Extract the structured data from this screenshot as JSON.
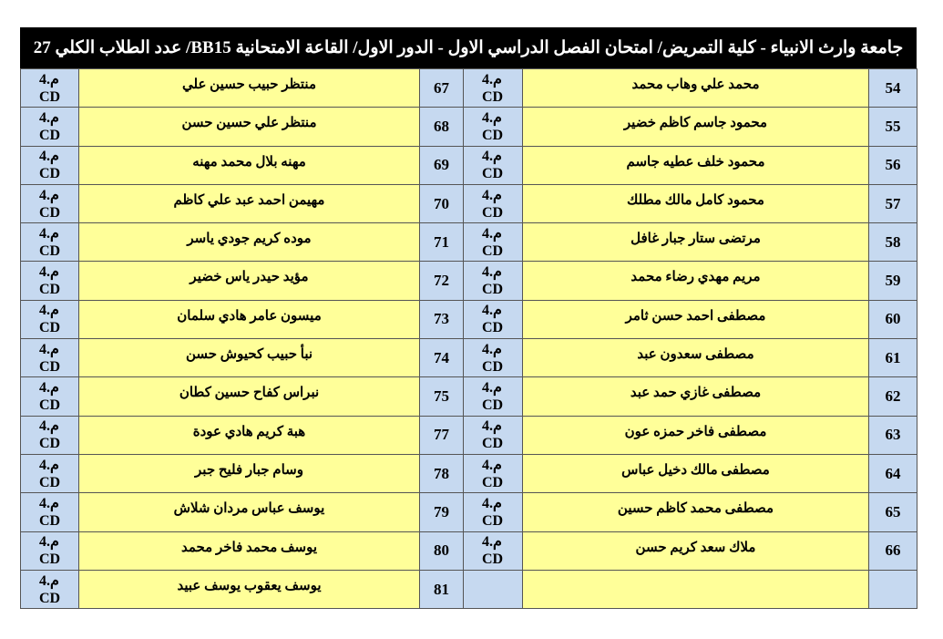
{
  "header": {
    "title": "جامعة وارث الانبياء - كلية التمريض/ امتحان الفصل الدراسي الاول - الدور الاول/ القاعة الامتحانية  BB15/ عدد الطلاب الكلي 27"
  },
  "table": {
    "rows": [
      {
        "right": {
          "number": 54,
          "name": "محمد علي وهاب محمد",
          "code": [
            "م.4",
            "CD"
          ]
        },
        "left": {
          "number": 67,
          "name": "منتظر حبيب حسين علي",
          "code": [
            "م.4",
            "CD"
          ]
        }
      },
      {
        "right": {
          "number": 55,
          "name": "محمود جاسم كاظم خضير",
          "code": [
            "م.4",
            "CD"
          ]
        },
        "left": {
          "number": 68,
          "name": "منتظر علي حسين حسن",
          "code": [
            "م.4",
            "CD"
          ]
        }
      },
      {
        "right": {
          "number": 56,
          "name": "محمود خلف عطيه جاسم",
          "code": [
            "م.4",
            "CD"
          ]
        },
        "left": {
          "number": 69,
          "name": "مهنه بلال محمد مهنه",
          "code": [
            "م.4",
            "CD"
          ]
        }
      },
      {
        "right": {
          "number": 57,
          "name": "محمود كامل مالك مطلك",
          "code": [
            "م.4",
            "CD"
          ]
        },
        "left": {
          "number": 70,
          "name": "مهيمن احمد عبد علي كاظم",
          "code": [
            "م.4",
            "CD"
          ]
        }
      },
      {
        "right": {
          "number": 58,
          "name": "مرتضى ستار جبار غافل",
          "code": [
            "م.4",
            "CD"
          ]
        },
        "left": {
          "number": 71,
          "name": "موده كريم جودي ياسر",
          "code": [
            "م.4",
            "CD"
          ]
        }
      },
      {
        "right": {
          "number": 59,
          "name": "مريم مهدي رضاء محمد",
          "code": [
            "م.4",
            "CD"
          ]
        },
        "left": {
          "number": 72,
          "name": "مؤيد حيدر ياس خضير",
          "code": [
            "م.4",
            "CD"
          ]
        }
      },
      {
        "right": {
          "number": 60,
          "name": "مصطفى احمد حسن ثامر",
          "code": [
            "م.4",
            "CD"
          ]
        },
        "left": {
          "number": 73,
          "name": "ميسون عامر هادي سلمان",
          "code": [
            "م.4",
            "CD"
          ]
        }
      },
      {
        "right": {
          "number": 61,
          "name": "مصطفى سعدون عبد",
          "code": [
            "م.4",
            "CD"
          ]
        },
        "left": {
          "number": 74,
          "name": "نبأ حبيب كحيوش حسن",
          "code": [
            "م.4",
            "CD"
          ]
        }
      },
      {
        "right": {
          "number": 62,
          "name": "مصطفى غازي حمد عبد",
          "code": [
            "م.4",
            "CD"
          ]
        },
        "left": {
          "number": 75,
          "name": "نبراس كفاح حسين كطان",
          "code": [
            "م.4",
            "CD"
          ]
        }
      },
      {
        "right": {
          "number": 63,
          "name": "مصطفى فاخر حمزه عون",
          "code": [
            "م.4",
            "CD"
          ]
        },
        "left": {
          "number": 77,
          "name": "هبة كريم هادي عودة",
          "code": [
            "م.4",
            "CD"
          ]
        }
      },
      {
        "right": {
          "number": 64,
          "name": "مصطفى مالك دخيل عباس",
          "code": [
            "م.4",
            "CD"
          ]
        },
        "left": {
          "number": 78,
          "name": "وسام جبار فليح جبر",
          "code": [
            "م.4",
            "CD"
          ]
        }
      },
      {
        "right": {
          "number": 65,
          "name": "مصطفى محمد كاظم حسين",
          "code": [
            "م.4",
            "CD"
          ]
        },
        "left": {
          "number": 79,
          "name": "يوسف عباس مردان شلاش",
          "code": [
            "م.4",
            "CD"
          ]
        }
      },
      {
        "right": {
          "number": 66,
          "name": "ملاك سعد كريم حسن",
          "code": [
            "م.4",
            "CD"
          ]
        },
        "left": {
          "number": 80,
          "name": "يوسف محمد فاخر محمد",
          "code": [
            "م.4",
            "CD"
          ]
        }
      },
      {
        "left": {
          "number": 81,
          "name": "يوسف يعقوب يوسف عبيد",
          "code": [
            "م.4",
            "CD"
          ]
        }
      }
    ]
  }
}
